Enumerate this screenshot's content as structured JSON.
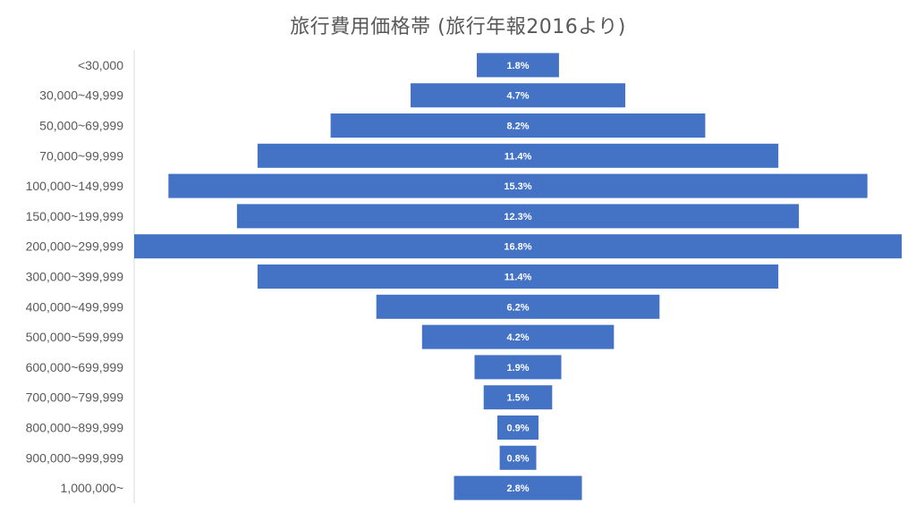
{
  "chart_data": {
    "type": "bar",
    "orientation": "horizontal",
    "layout": "centered-funnel",
    "title": "旅行費用価格帯 (旅行年報2016より)",
    "categories": [
      "<30,000",
      "30,000~49,999",
      "50,000~69,999",
      "70,000~99,999",
      "100,000~149,999",
      "150,000~199,999",
      "200,000~299,999",
      "300,000~399,999",
      "400,000~499,999",
      "500,000~599,999",
      "600,000~699,999",
      "700,000~799,999",
      "800,000~899,999",
      "900,000~999,999",
      "1,000,000~"
    ],
    "values": [
      1.8,
      4.7,
      8.2,
      11.4,
      15.3,
      12.3,
      16.8,
      11.4,
      6.2,
      4.2,
      1.9,
      1.5,
      0.9,
      0.8,
      2.8
    ],
    "value_labels": [
      "1.8%",
      "4.7%",
      "8.2%",
      "11.4%",
      "15.3%",
      "12.3%",
      "16.8%",
      "11.4%",
      "6.2%",
      "4.2%",
      "1.9%",
      "1.5%",
      "0.9%",
      "0.8%",
      "2.8%"
    ],
    "bar_color": "#4472C4",
    "label_color": "#FFFFFF",
    "axis_color": "#D9D9D9",
    "text_color": "#595959",
    "grid": false,
    "legend": "none"
  }
}
